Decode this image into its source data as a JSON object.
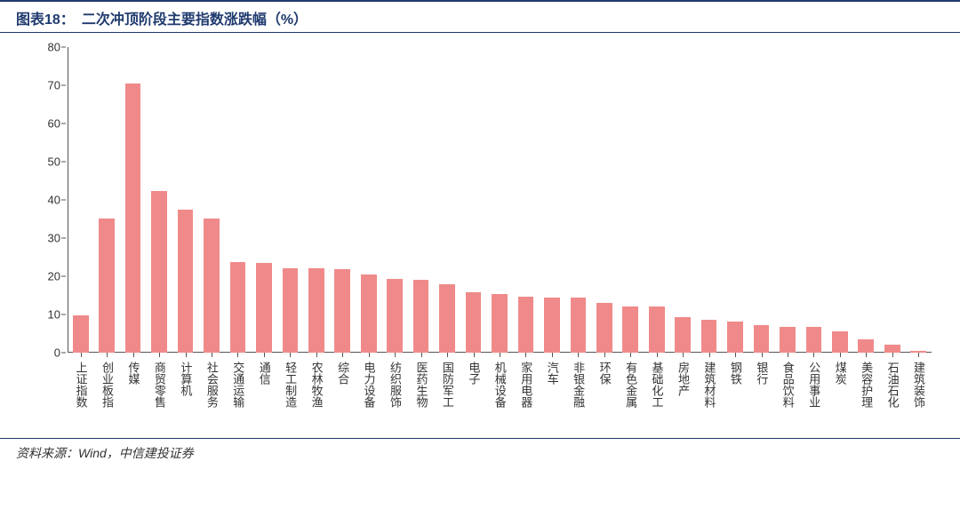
{
  "header": {
    "label": "图表18：",
    "title": "二次冲顶阶段主要指数涨跌幅（%）",
    "border_color": "#1f3a6e",
    "label_color": "#1f3a6e",
    "title_color": "#1f3a6e",
    "font_size_pt": 16
  },
  "source": {
    "text": "资料来源：Wind，中信建投证券",
    "border_color": "#1f3a6e",
    "font_size_pt": 14
  },
  "chart": {
    "type": "bar",
    "ylim": [
      0,
      80
    ],
    "ytick_step": 10,
    "y_ticks": [
      0,
      10,
      20,
      30,
      40,
      50,
      60,
      70,
      80
    ],
    "bar_color": "#f08a8a",
    "axis_color": "#555555",
    "tick_font_size_pt": 13,
    "xlabel_font_size_pt": 13,
    "background_color": "#ffffff",
    "bar_width_ratio": 0.6,
    "categories": [
      "上证指数",
      "创业板指",
      "传媒",
      "商贸零售",
      "计算机",
      "社会服务",
      "交通运输",
      "通信",
      "轻工制造",
      "农林牧渔",
      "综合",
      "电力设备",
      "纺织服饰",
      "医药生物",
      "国防军工",
      "电子",
      "机械设备",
      "家用电器",
      "汽车",
      "非银金融",
      "环保",
      "有色金属",
      "基础化工",
      "房地产",
      "建筑材料",
      "钢铁",
      "银行",
      "食品饮料",
      "公用事业",
      "煤炭",
      "美容护理",
      "石油石化",
      "建筑装饰"
    ],
    "values": [
      9.7,
      35.2,
      70.5,
      42.3,
      37.5,
      35.1,
      23.8,
      23.6,
      22.2,
      22.0,
      21.8,
      20.4,
      19.2,
      19.0,
      18.0,
      15.8,
      15.3,
      14.6,
      14.4,
      14.4,
      13.0,
      12.2,
      12.0,
      9.4,
      8.7,
      8.2,
      7.2,
      6.8,
      6.7,
      5.5,
      3.6,
      2.2,
      0.5
    ]
  }
}
